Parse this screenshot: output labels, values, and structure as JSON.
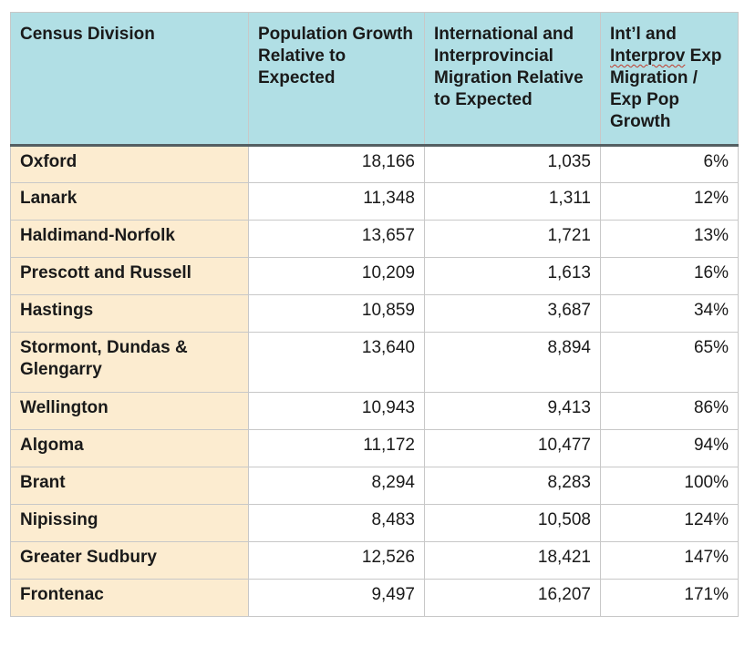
{
  "table": {
    "headers": {
      "col1": "Census Division",
      "col2": "Population Growth Relative to Expected",
      "col3": "International and Interprovincial Migration Relative to Expected",
      "col4_part1": "Int’l and",
      "col4_part2": "Interprov",
      "col4_part3": "Exp Migration / Exp Pop Growth"
    },
    "rows": [
      {
        "division": "Oxford",
        "pop_growth": "18,166",
        "migration": "1,035",
        "ratio": "6%"
      },
      {
        "division": "Lanark",
        "pop_growth": "11,348",
        "migration": "1,311",
        "ratio": "12%"
      },
      {
        "division": "Haldimand-Norfolk",
        "pop_growth": "13,657",
        "migration": "1,721",
        "ratio": "13%"
      },
      {
        "division": "Prescott and Russell",
        "pop_growth": "10,209",
        "migration": "1,613",
        "ratio": "16%"
      },
      {
        "division": "Hastings",
        "pop_growth": "10,859",
        "migration": "3,687",
        "ratio": "34%"
      },
      {
        "division": "Stormont, Dundas & Glengarry",
        "pop_growth": "13,640",
        "migration": "8,894",
        "ratio": "65%"
      },
      {
        "division": "Wellington",
        "pop_growth": "10,943",
        "migration": "9,413",
        "ratio": "86%"
      },
      {
        "division": "Algoma",
        "pop_growth": "11,172",
        "migration": "10,477",
        "ratio": "94%"
      },
      {
        "division": "Brant",
        "pop_growth": "8,294",
        "migration": "8,283",
        "ratio": "100%"
      },
      {
        "division": "Nipissing",
        "pop_growth": "8,483",
        "migration": "10,508",
        "ratio": "124%"
      },
      {
        "division": "Greater Sudbury",
        "pop_growth": "12,526",
        "migration": "18,421",
        "ratio": "147%"
      },
      {
        "division": "Frontenac",
        "pop_growth": "9,497",
        "migration": "16,207",
        "ratio": "171%"
      }
    ]
  },
  "colors": {
    "header_bg": "#b1dfe5",
    "name_col_bg": "#fcecd0",
    "grid": "#c8c8c8",
    "header_rule": "#545f62"
  }
}
